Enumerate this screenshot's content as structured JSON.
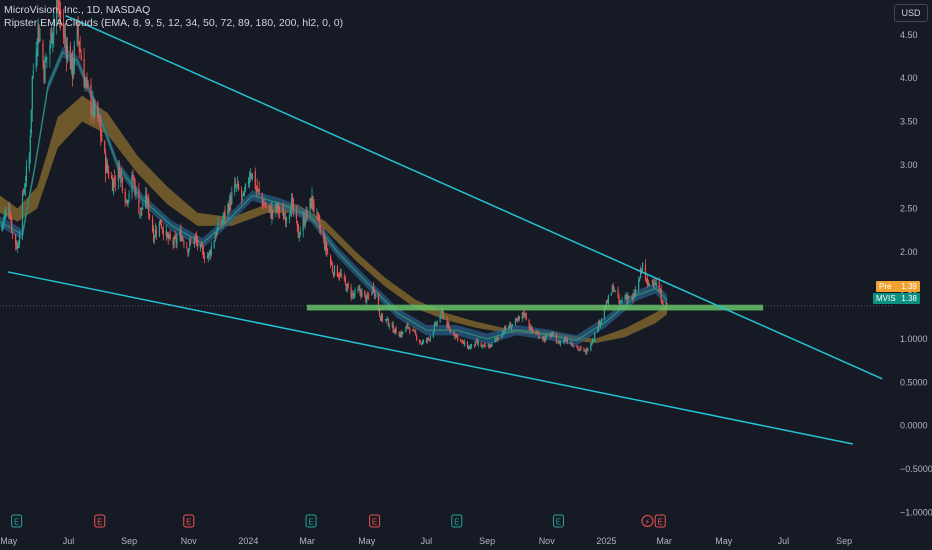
{
  "legend": {
    "symbol_line": "MicroVision, Inc., 1D, NASDAQ",
    "indicator_line": "Ripster EMA Clouds (EMA, 8, 9, 5, 12, 34, 50, 72, 89, 180, 200, hl2, 0, 0)"
  },
  "currency_button": "USD",
  "price_tags": {
    "pre": {
      "label": "Pre",
      "value": "1.39",
      "color": "#f0a330"
    },
    "mvis": {
      "label": "MVIS",
      "value": "1.38",
      "color": "#0b8f80"
    }
  },
  "event_markers": [
    {
      "letter": "E",
      "date": "2023-05-09",
      "color": "#26a69a"
    },
    {
      "letter": "E",
      "date": "2023-08-02",
      "color": "#ef5350"
    },
    {
      "letter": "E",
      "date": "2023-11-01",
      "color": "#ef5350"
    },
    {
      "letter": "E",
      "date": "2024-03-05",
      "color": "#26a69a"
    },
    {
      "letter": "E",
      "date": "2024-05-09",
      "color": "#ef5350"
    },
    {
      "letter": "E",
      "date": "2024-08-01",
      "color": "#26a69a"
    },
    {
      "letter": "E",
      "date": "2024-11-13",
      "color": "#26a69a"
    },
    {
      "letter": "⚡",
      "date": "2025-02-12",
      "color": "#ef5350"
    },
    {
      "letter": "E",
      "date": "2025-02-25",
      "color": "#ef5350"
    }
  ],
  "chart_data": {
    "type": "candlestick",
    "title": "MicroVision, Inc., 1D, NASDAQ",
    "x_axis": {
      "type": "date",
      "range": [
        "2023-04-22",
        "2025-10-20"
      ],
      "tick_labels": [
        {
          "date": "2023-05-01",
          "label": "May"
        },
        {
          "date": "2023-07-01",
          "label": "Jul"
        },
        {
          "date": "2023-09-01",
          "label": "Sep"
        },
        {
          "date": "2023-11-01",
          "label": "Nov"
        },
        {
          "date": "2024-01-01",
          "label": "2024"
        },
        {
          "date": "2024-03-01",
          "label": "Mar"
        },
        {
          "date": "2024-05-01",
          "label": "May"
        },
        {
          "date": "2024-07-01",
          "label": "Jul"
        },
        {
          "date": "2024-09-01",
          "label": "Sep"
        },
        {
          "date": "2024-11-01",
          "label": "Nov"
        },
        {
          "date": "2025-01-01",
          "label": "2025"
        },
        {
          "date": "2025-03-01",
          "label": "Mar"
        },
        {
          "date": "2025-05-01",
          "label": "May"
        },
        {
          "date": "2025-07-01",
          "label": "Jul"
        },
        {
          "date": "2025-09-01",
          "label": "Sep"
        }
      ]
    },
    "y_axis": {
      "range": [
        -1.2,
        4.9
      ],
      "position": "right",
      "ticks": [
        {
          "value": 4.5,
          "label": "4.50"
        },
        {
          "value": 4.0,
          "label": "4.00"
        },
        {
          "value": 3.5,
          "label": "3.50"
        },
        {
          "value": 3.0,
          "label": "3.00"
        },
        {
          "value": 2.5,
          "label": "2.50"
        },
        {
          "value": 2.0,
          "label": "2.00"
        },
        {
          "value": 1.5,
          "label": "1.50"
        },
        {
          "value": 1.0,
          "label": "1.0000"
        },
        {
          "value": 0.5,
          "label": "0.5000"
        },
        {
          "value": 0.0,
          "label": "0.0000"
        },
        {
          "value": -0.5,
          "label": "−0.5000"
        },
        {
          "value": -1.0,
          "label": "−1.0000"
        }
      ]
    },
    "grid": false,
    "last_price": 1.38,
    "premarket_price": 1.39,
    "price_path": [
      [
        "2023-04-22",
        2.25
      ],
      [
        "2023-05-01",
        2.55
      ],
      [
        "2023-05-05",
        2.2
      ],
      [
        "2023-05-10",
        2.05
      ],
      [
        "2023-05-16",
        2.7
      ],
      [
        "2023-05-22",
        3.1
      ],
      [
        "2023-05-25",
        4.0
      ],
      [
        "2023-05-31",
        4.6
      ],
      [
        "2023-06-06",
        4.1
      ],
      [
        "2023-06-12",
        4.4
      ],
      [
        "2023-06-19",
        4.9
      ],
      [
        "2023-06-26",
        4.5
      ],
      [
        "2023-07-05",
        4.1
      ],
      [
        "2023-07-10",
        4.55
      ],
      [
        "2023-07-17",
        4.0
      ],
      [
        "2023-07-24",
        3.7
      ],
      [
        "2023-08-01",
        3.5
      ],
      [
        "2023-08-08",
        3.0
      ],
      [
        "2023-08-15",
        2.8
      ],
      [
        "2023-08-22",
        2.95
      ],
      [
        "2023-08-29",
        2.6
      ],
      [
        "2023-09-05",
        2.85
      ],
      [
        "2023-09-12",
        2.45
      ],
      [
        "2023-09-19",
        2.6
      ],
      [
        "2023-09-26",
        2.2
      ],
      [
        "2023-10-03",
        2.35
      ],
      [
        "2023-10-10",
        2.15
      ],
      [
        "2023-10-17",
        2.1
      ],
      [
        "2023-10-24",
        2.2
      ],
      [
        "2023-10-31",
        2.05
      ],
      [
        "2023-11-07",
        2.15
      ],
      [
        "2023-11-14",
        2.0
      ],
      [
        "2023-11-21",
        1.95
      ],
      [
        "2023-11-28",
        2.2
      ],
      [
        "2023-12-05",
        2.35
      ],
      [
        "2023-12-12",
        2.55
      ],
      [
        "2023-12-19",
        2.75
      ],
      [
        "2023-12-27",
        2.6
      ],
      [
        "2024-01-03",
        2.95
      ],
      [
        "2024-01-10",
        2.7
      ],
      [
        "2024-01-17",
        2.55
      ],
      [
        "2024-01-24",
        2.45
      ],
      [
        "2024-01-31",
        2.5
      ],
      [
        "2024-02-07",
        2.4
      ],
      [
        "2024-02-14",
        2.55
      ],
      [
        "2024-02-21",
        2.2
      ],
      [
        "2024-02-28",
        2.4
      ],
      [
        "2024-03-06",
        2.6
      ],
      [
        "2024-03-13",
        2.3
      ],
      [
        "2024-03-20",
        2.05
      ],
      [
        "2024-03-27",
        1.8
      ],
      [
        "2024-04-03",
        1.75
      ],
      [
        "2024-04-10",
        1.6
      ],
      [
        "2024-04-17",
        1.5
      ],
      [
        "2024-04-24",
        1.55
      ],
      [
        "2024-05-01",
        1.45
      ],
      [
        "2024-05-08",
        1.6
      ],
      [
        "2024-05-15",
        1.25
      ],
      [
        "2024-05-22",
        1.2
      ],
      [
        "2024-05-29",
        1.1
      ],
      [
        "2024-06-05",
        1.05
      ],
      [
        "2024-06-12",
        1.15
      ],
      [
        "2024-06-19",
        1.05
      ],
      [
        "2024-06-26",
        0.95
      ],
      [
        "2024-07-03",
        1.0
      ],
      [
        "2024-07-10",
        1.15
      ],
      [
        "2024-07-17",
        1.3
      ],
      [
        "2024-07-24",
        1.1
      ],
      [
        "2024-07-31",
        1.05
      ],
      [
        "2024-08-07",
        0.95
      ],
      [
        "2024-08-14",
        0.9
      ],
      [
        "2024-08-21",
        0.95
      ],
      [
        "2024-08-28",
        0.9
      ],
      [
        "2024-09-04",
        0.92
      ],
      [
        "2024-09-11",
        1.0
      ],
      [
        "2024-09-18",
        1.1
      ],
      [
        "2024-09-25",
        1.15
      ],
      [
        "2024-10-02",
        1.2
      ],
      [
        "2024-10-09",
        1.3
      ],
      [
        "2024-10-16",
        1.1
      ],
      [
        "2024-10-23",
        1.05
      ],
      [
        "2024-10-30",
        1.0
      ],
      [
        "2024-11-06",
        1.05
      ],
      [
        "2024-11-13",
        0.95
      ],
      [
        "2024-11-20",
        1.0
      ],
      [
        "2024-11-27",
        0.95
      ],
      [
        "2024-12-04",
        0.88
      ],
      [
        "2024-12-11",
        0.85
      ],
      [
        "2024-12-18",
        1.0
      ],
      [
        "2024-12-27",
        1.25
      ],
      [
        "2025-01-03",
        1.45
      ],
      [
        "2025-01-08",
        1.6
      ],
      [
        "2025-01-14",
        1.4
      ],
      [
        "2025-01-21",
        1.5
      ],
      [
        "2025-01-28",
        1.45
      ],
      [
        "2025-02-04",
        1.7
      ],
      [
        "2025-02-07",
        1.85
      ],
      [
        "2025-02-12",
        1.6
      ],
      [
        "2025-02-18",
        1.7
      ],
      [
        "2025-02-24",
        1.55
      ],
      [
        "2025-02-28",
        1.42
      ],
      [
        "2025-03-04",
        1.38
      ]
    ],
    "cloud_fast_path": [
      [
        "2023-04-22",
        2.35
      ],
      [
        "2023-05-15",
        2.2
      ],
      [
        "2023-05-28",
        3.0
      ],
      [
        "2023-06-10",
        3.9
      ],
      [
        "2023-06-25",
        4.3
      ],
      [
        "2023-07-10",
        4.2
      ],
      [
        "2023-08-01",
        3.6
      ],
      [
        "2023-08-20",
        3.0
      ],
      [
        "2023-09-15",
        2.6
      ],
      [
        "2023-10-15",
        2.3
      ],
      [
        "2023-11-15",
        2.1
      ],
      [
        "2023-12-10",
        2.35
      ],
      [
        "2024-01-05",
        2.65
      ],
      [
        "2024-02-05",
        2.55
      ],
      [
        "2024-03-05",
        2.4
      ],
      [
        "2024-04-01",
        2.0
      ],
      [
        "2024-05-01",
        1.65
      ],
      [
        "2024-06-01",
        1.3
      ],
      [
        "2024-07-01",
        1.1
      ],
      [
        "2024-08-01",
        1.1
      ],
      [
        "2024-09-01",
        1.0
      ],
      [
        "2024-10-01",
        1.1
      ],
      [
        "2024-11-01",
        1.05
      ],
      [
        "2024-12-01",
        0.98
      ],
      [
        "2025-01-01",
        1.2
      ],
      [
        "2025-02-01",
        1.5
      ],
      [
        "2025-02-20",
        1.58
      ],
      [
        "2025-03-04",
        1.45
      ]
    ],
    "cloud_slow_upper": [
      [
        "2023-04-22",
        2.65
      ],
      [
        "2023-05-10",
        2.5
      ],
      [
        "2023-05-30",
        2.75
      ],
      [
        "2023-06-20",
        3.55
      ],
      [
        "2023-07-15",
        3.8
      ],
      [
        "2023-08-10",
        3.6
      ],
      [
        "2023-09-10",
        3.1
      ],
      [
        "2023-10-10",
        2.75
      ],
      [
        "2023-11-10",
        2.45
      ],
      [
        "2023-12-15",
        2.4
      ],
      [
        "2024-01-20",
        2.55
      ],
      [
        "2024-02-20",
        2.55
      ],
      [
        "2024-03-20",
        2.35
      ],
      [
        "2024-04-20",
        2.0
      ],
      [
        "2024-05-20",
        1.7
      ],
      [
        "2024-06-20",
        1.45
      ],
      [
        "2024-07-20",
        1.3
      ],
      [
        "2024-08-20",
        1.2
      ],
      [
        "2024-09-20",
        1.12
      ],
      [
        "2024-10-20",
        1.1
      ],
      [
        "2024-11-20",
        1.05
      ],
      [
        "2024-12-20",
        1.0
      ],
      [
        "2025-01-20",
        1.12
      ],
      [
        "2025-02-20",
        1.3
      ],
      [
        "2025-03-04",
        1.38
      ]
    ],
    "cloud_slow_lower": [
      [
        "2023-04-22",
        2.45
      ],
      [
        "2023-05-10",
        2.35
      ],
      [
        "2023-05-30",
        2.5
      ],
      [
        "2023-06-20",
        3.2
      ],
      [
        "2023-07-15",
        3.5
      ],
      [
        "2023-08-10",
        3.35
      ],
      [
        "2023-09-10",
        2.9
      ],
      [
        "2023-10-10",
        2.55
      ],
      [
        "2023-11-10",
        2.3
      ],
      [
        "2023-12-15",
        2.3
      ],
      [
        "2024-01-20",
        2.45
      ],
      [
        "2024-02-20",
        2.45
      ],
      [
        "2024-03-20",
        2.25
      ],
      [
        "2024-04-20",
        1.9
      ],
      [
        "2024-05-20",
        1.6
      ],
      [
        "2024-06-20",
        1.35
      ],
      [
        "2024-07-20",
        1.22
      ],
      [
        "2024-08-20",
        1.13
      ],
      [
        "2024-09-20",
        1.07
      ],
      [
        "2024-10-20",
        1.05
      ],
      [
        "2024-11-20",
        1.0
      ],
      [
        "2024-12-20",
        0.95
      ],
      [
        "2025-01-20",
        1.02
      ],
      [
        "2025-02-20",
        1.18
      ],
      [
        "2025-03-04",
        1.28
      ]
    ],
    "trendlines": [
      {
        "name": "",
        "color": "#22c3d6",
        "from": [
          "2023-06-28",
          4.72
        ],
        "to": [
          "2025-10-10",
          0.54
        ]
      },
      {
        "name": "",
        "color": "#22c3d6",
        "from": [
          "2023-04-30",
          1.77
        ],
        "to": [
          "2025-09-10",
          -0.21
        ]
      }
    ],
    "support_band": {
      "from_date": "2024-03-01",
      "to_date": "2025-06-10",
      "low": 1.33,
      "high": 1.39,
      "color": "#6ac26a"
    },
    "last_price_line": {
      "value": 1.38,
      "color": "#787b86"
    }
  }
}
